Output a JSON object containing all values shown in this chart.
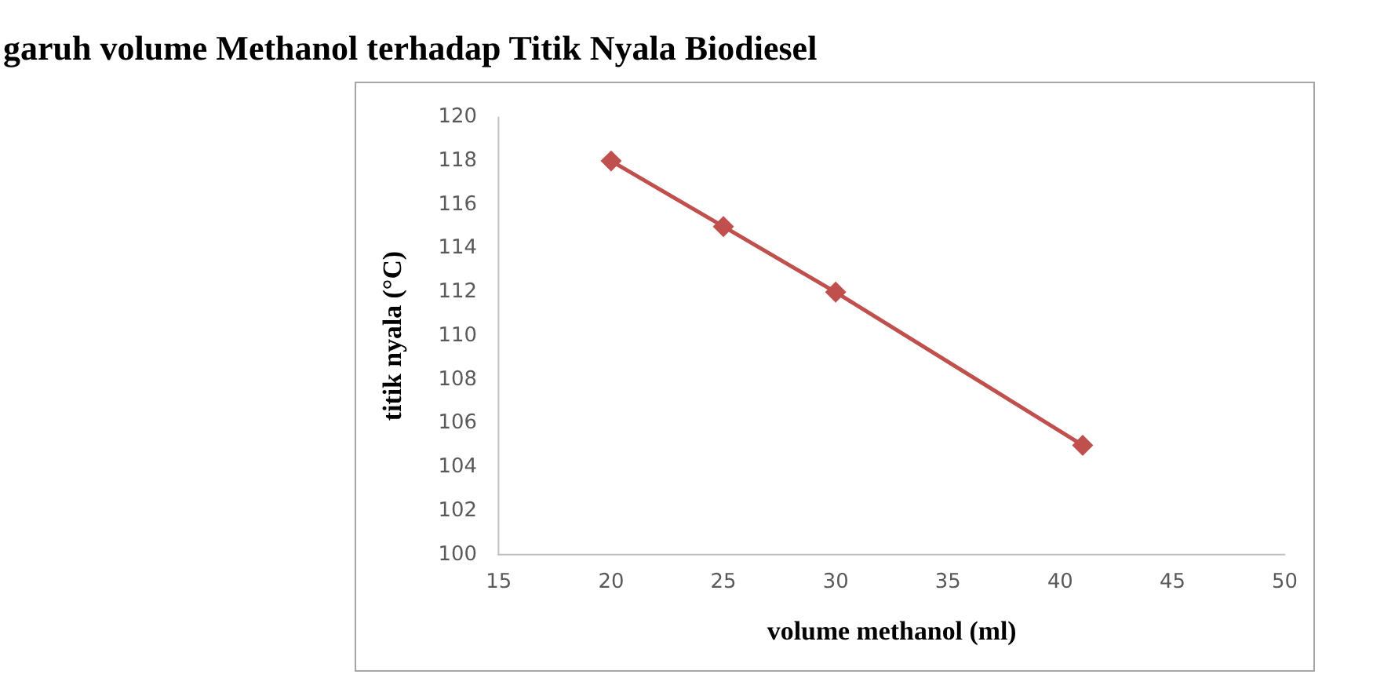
{
  "chart_data": {
    "type": "line",
    "title": "garuh volume Methanol terhadap Titik Nyala Biodiesel",
    "xlabel": "volume methanol (ml)",
    "ylabel": "titik nyala (°C)",
    "x": [
      20,
      25,
      30,
      41
    ],
    "series": [
      {
        "color": "#c0504d",
        "values": [
          118,
          115,
          112,
          105
        ]
      }
    ],
    "xlim": [
      15,
      50
    ],
    "xticks": [
      15,
      20,
      25,
      30,
      35,
      40,
      45,
      50
    ],
    "ylim": [
      100,
      120
    ],
    "yticks": [
      100,
      102,
      104,
      106,
      108,
      110,
      112,
      114,
      116,
      118,
      120
    ],
    "grid": false,
    "legend": false,
    "marker": "diamond",
    "line_style": "solid"
  }
}
